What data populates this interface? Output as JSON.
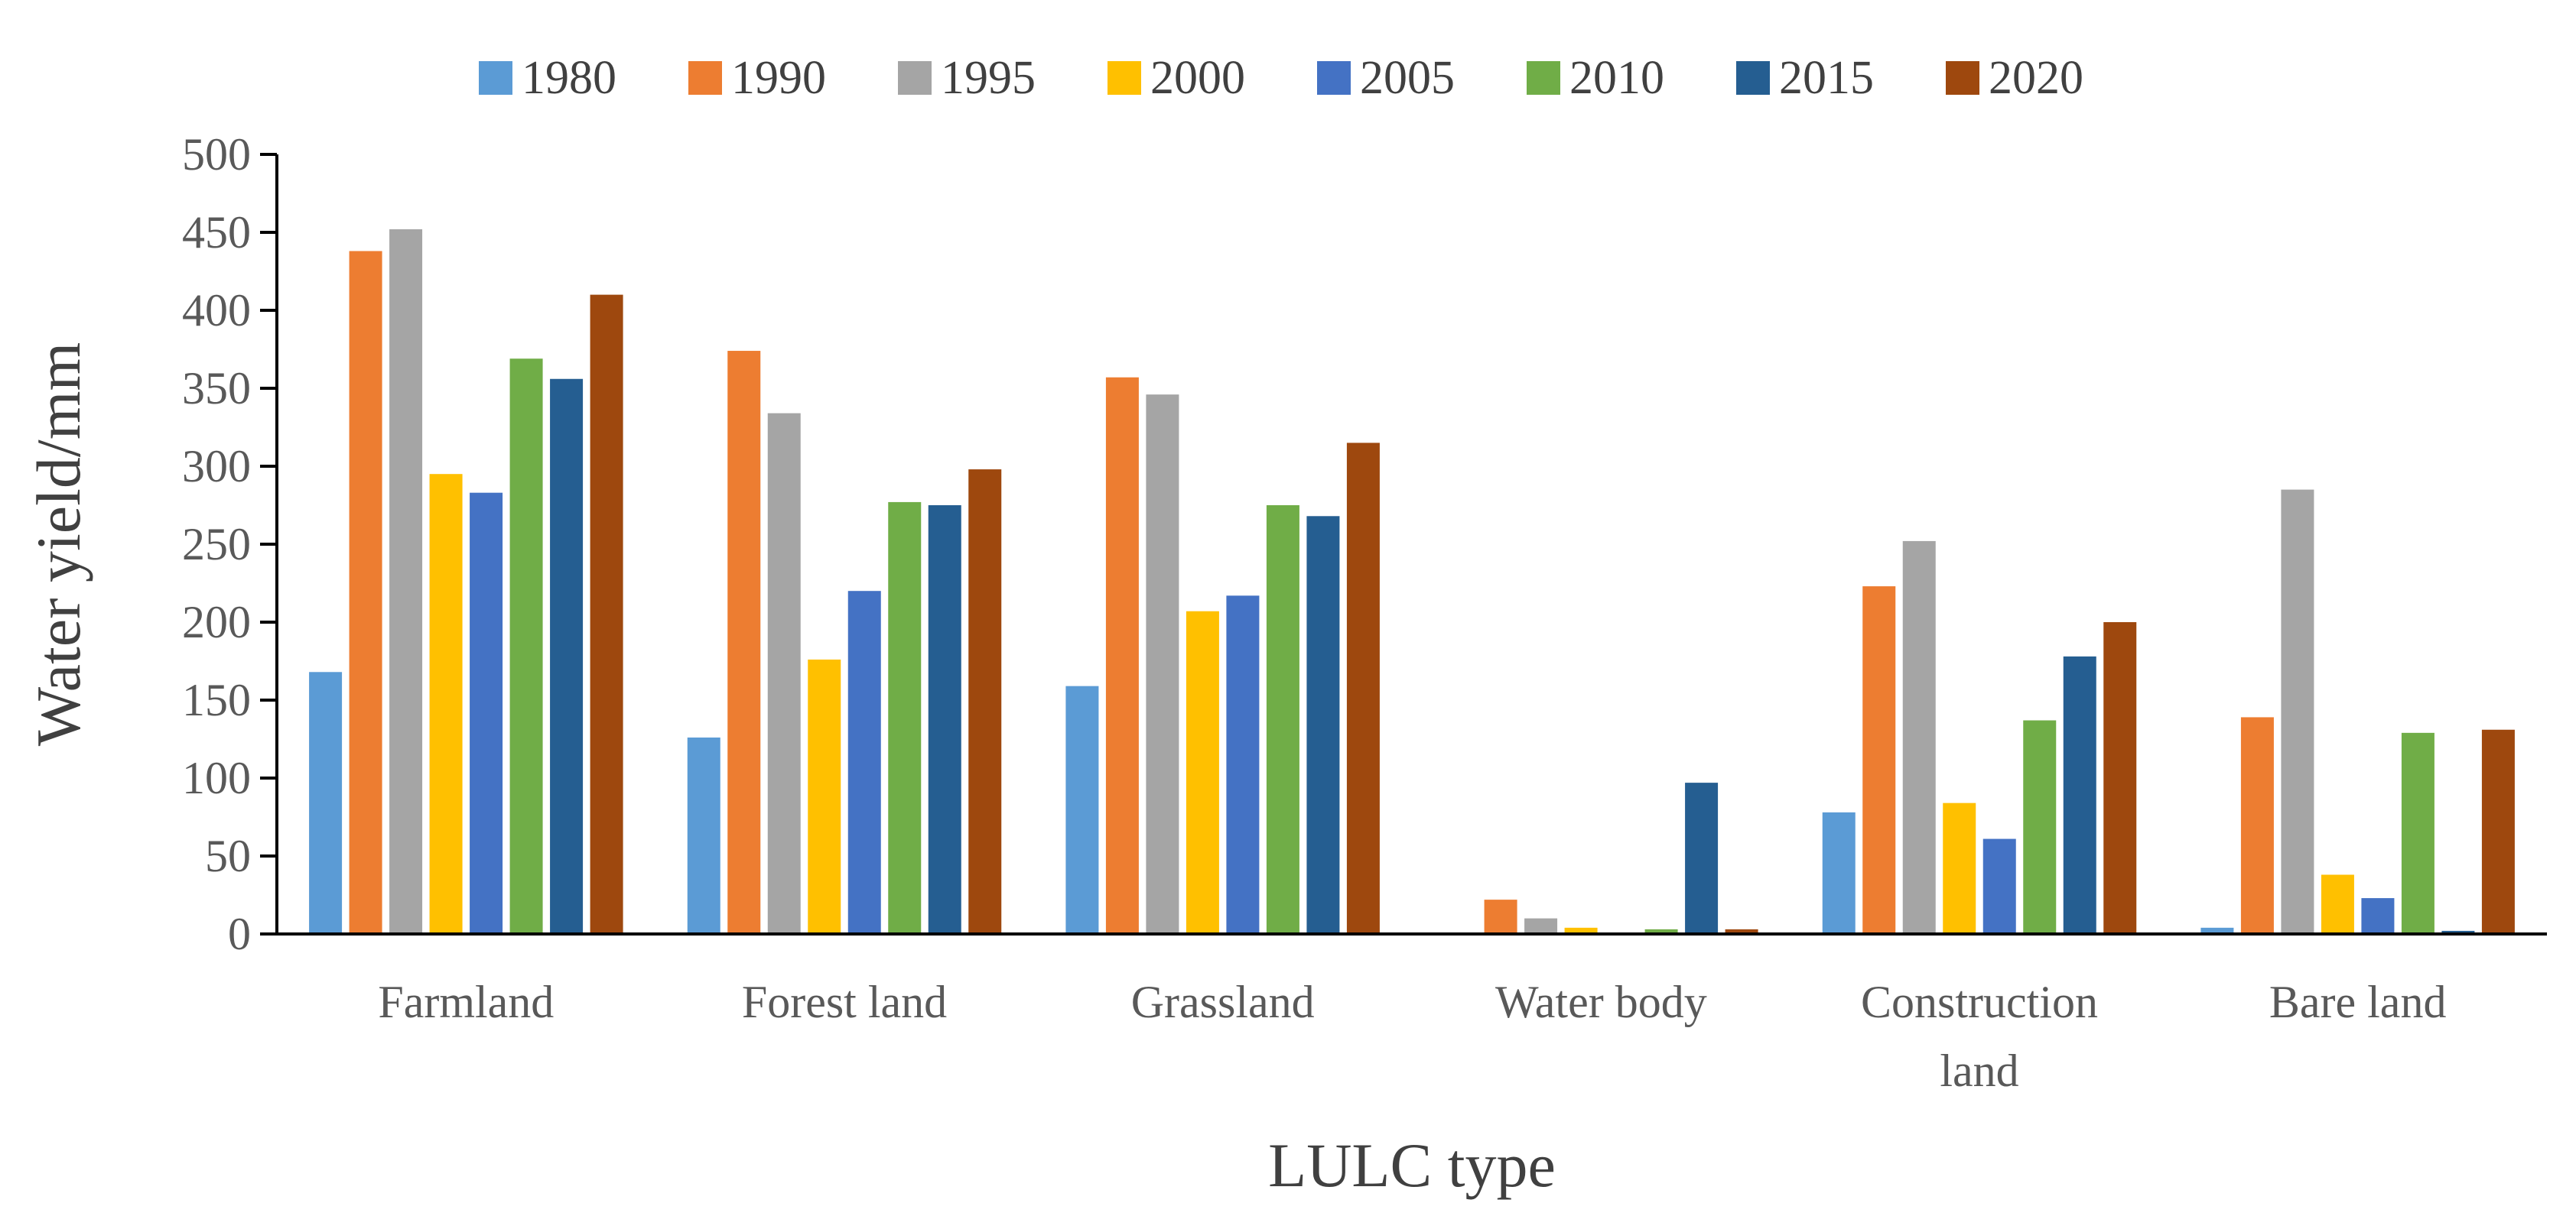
{
  "chart_data": {
    "type": "bar",
    "title": "",
    "xlabel": "LULC type",
    "ylabel": "Water yield/mm",
    "ylim": [
      0,
      500
    ],
    "yticks": [
      0,
      50,
      100,
      150,
      200,
      250,
      300,
      350,
      400,
      450,
      500
    ],
    "grid": false,
    "legend_position": "top",
    "categories": [
      [
        "Farmland"
      ],
      [
        "Forest land"
      ],
      [
        "Grassland"
      ],
      [
        "Water body"
      ],
      [
        "Construction",
        "land"
      ],
      [
        "Bare land"
      ]
    ],
    "series": [
      {
        "name": "1980",
        "color": "#5B9BD5",
        "values": [
          168,
          126,
          159,
          0,
          78,
          4
        ]
      },
      {
        "name": "1990",
        "color": "#ED7D31",
        "values": [
          438,
          374,
          357,
          22,
          223,
          139
        ]
      },
      {
        "name": "1995",
        "color": "#A5A5A5",
        "values": [
          452,
          334,
          346,
          10,
          252,
          285
        ]
      },
      {
        "name": "2000",
        "color": "#FFC000",
        "values": [
          295,
          176,
          207,
          4,
          84,
          38
        ]
      },
      {
        "name": "2005",
        "color": "#4472C4",
        "values": [
          283,
          220,
          217,
          0,
          61,
          23
        ]
      },
      {
        "name": "2010",
        "color": "#70AD47",
        "values": [
          369,
          277,
          275,
          3,
          137,
          129
        ]
      },
      {
        "name": "2015",
        "color": "#255E91",
        "values": [
          356,
          275,
          268,
          97,
          178,
          2
        ]
      },
      {
        "name": "2020",
        "color": "#9E480E",
        "values": [
          410,
          298,
          315,
          3,
          200,
          131
        ]
      }
    ]
  }
}
